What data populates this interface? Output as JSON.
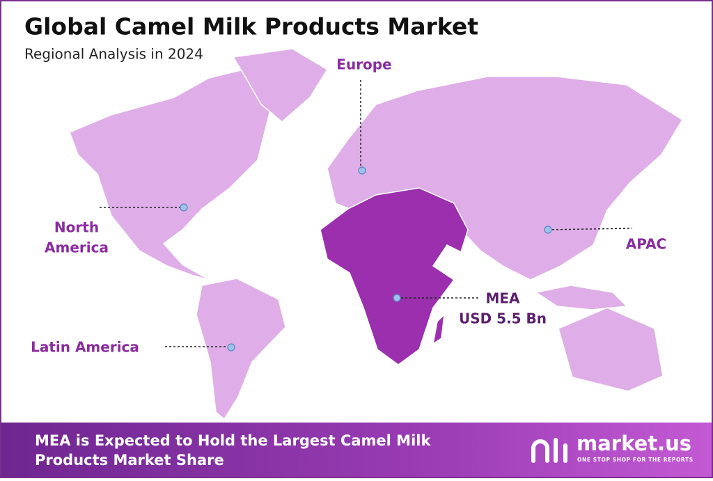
{
  "header": {
    "title": "Global Camel Milk Products Market",
    "subtitle": "Regional Analysis in 2024"
  },
  "regions": {
    "europe": {
      "label": "Europe"
    },
    "north_america": {
      "label": [
        "North",
        "America"
      ]
    },
    "apac": {
      "label": "APAC"
    },
    "mea": {
      "label": "MEA",
      "value": "USD 5.5 Bn"
    },
    "latin_america": {
      "label": "Latin America"
    }
  },
  "footer": {
    "headline": [
      "MEA is Expected to Hold the Largest Camel Milk",
      "Products Market Share"
    ],
    "logo": {
      "name": "market.us",
      "tagline": "ONE STOP SHOP FOR THE REPORTS"
    }
  }
}
